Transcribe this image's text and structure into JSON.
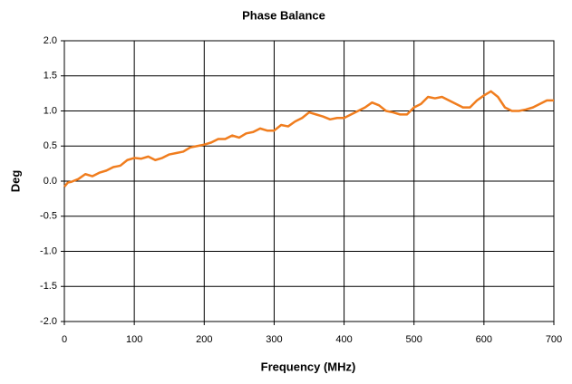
{
  "chart_data": {
    "type": "line",
    "title": "Phase Balance",
    "x_label": "Frequency (MHz)",
    "y_label": "Deg",
    "color": "#f07d1e",
    "grid": true,
    "x": [
      0,
      5,
      10,
      20,
      30,
      40,
      50,
      60,
      70,
      80,
      90,
      100,
      110,
      120,
      130,
      140,
      150,
      160,
      170,
      180,
      190,
      200,
      210,
      220,
      230,
      240,
      250,
      260,
      270,
      280,
      290,
      300,
      310,
      320,
      330,
      340,
      350,
      360,
      370,
      380,
      390,
      400,
      410,
      420,
      430,
      440,
      450,
      460,
      470,
      480,
      490,
      500,
      510,
      520,
      530,
      540,
      550,
      560,
      570,
      580,
      590,
      600,
      610,
      620,
      630,
      640,
      650,
      660,
      670,
      680,
      690,
      700
    ],
    "values": [
      -0.08,
      -0.02,
      -0.01,
      0.03,
      0.1,
      0.07,
      0.12,
      0.15,
      0.2,
      0.22,
      0.3,
      0.33,
      0.32,
      0.35,
      0.3,
      0.33,
      0.38,
      0.4,
      0.42,
      0.48,
      0.5,
      0.52,
      0.55,
      0.6,
      0.6,
      0.65,
      0.62,
      0.68,
      0.7,
      0.75,
      0.72,
      0.72,
      0.8,
      0.78,
      0.85,
      0.9,
      0.98,
      0.95,
      0.92,
      0.88,
      0.9,
      0.9,
      0.95,
      1.0,
      1.05,
      1.12,
      1.08,
      1.0,
      0.98,
      0.95,
      0.95,
      1.05,
      1.1,
      1.2,
      1.18,
      1.2,
      1.15,
      1.1,
      1.05,
      1.05,
      1.15,
      1.22,
      1.28,
      1.2,
      1.05,
      1.0,
      1.0,
      1.02,
      1.05,
      1.1,
      1.15,
      1.15
    ],
    "xlim": [
      0,
      700
    ],
    "xticks": [
      0,
      100,
      200,
      300,
      400,
      500,
      600,
      700
    ],
    "ylim": [
      -2,
      2
    ],
    "yticks": [
      {
        "value": -2,
        "label": "-2.0"
      },
      -1.5,
      {
        "value": -1,
        "label": "-1.0"
      },
      -0.5,
      {
        "value": 0,
        "label": "0.0"
      },
      0.5,
      {
        "value": 1,
        "label": "1.0"
      },
      1.5,
      {
        "value": 2,
        "label": "2.0"
      }
    ]
  }
}
